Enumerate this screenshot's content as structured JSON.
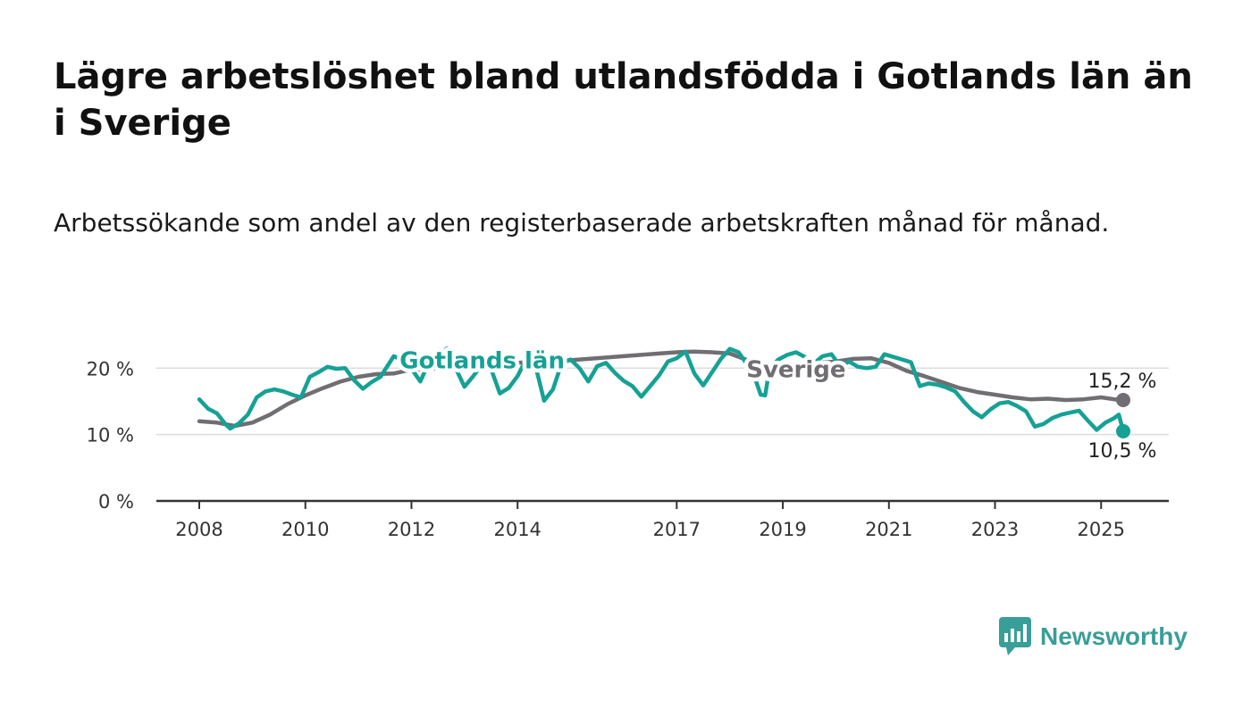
{
  "header": {
    "title": "Lägre arbetslöshet bland utlandsfödda i Gotlands län än i Sverige",
    "subtitle": "Arbetssökande som andel av den registerbaserade arbetskraften månad för månad."
  },
  "brand": {
    "name": "Newsworthy",
    "color": "#3a9e98",
    "icon": "newsworthy-chart-bubble-icon"
  },
  "colors": {
    "gotland": "#16a195",
    "sverige": "#706d73",
    "grid": "#dddddd",
    "axis": "#333333"
  },
  "chart_data": {
    "type": "line",
    "title": "",
    "xlabel": "",
    "ylabel": "",
    "xlim": [
      "2008-01",
      "2025-06"
    ],
    "ylim": [
      0,
      23
    ],
    "y_ticks": [
      {
        "value": 0,
        "label": "0 %"
      },
      {
        "value": 10,
        "label": "10 %"
      },
      {
        "value": 20,
        "label": "20 %"
      }
    ],
    "x_ticks": [
      {
        "date": "2008-01",
        "label": "2008"
      },
      {
        "date": "2010-01",
        "label": "2010"
      },
      {
        "date": "2012-01",
        "label": "2012"
      },
      {
        "date": "2014-01",
        "label": "2014"
      },
      {
        "date": "2017-01",
        "label": "2017"
      },
      {
        "date": "2019-01",
        "label": "2019"
      },
      {
        "date": "2021-01",
        "label": "2021"
      },
      {
        "date": "2023-01",
        "label": "2023"
      },
      {
        "date": "2025-01",
        "label": "2025"
      }
    ],
    "grid": "horizontal",
    "legend": "direct labels",
    "series": [
      {
        "name": "Sverige",
        "color": "#706d73",
        "label_at": "2019-04",
        "end_label": "15,2 %",
        "points": [
          [
            "2008-01",
            12.0
          ],
          [
            "2008-05",
            11.8
          ],
          [
            "2008-09",
            11.3
          ],
          [
            "2009-01",
            11.8
          ],
          [
            "2009-05",
            13.0
          ],
          [
            "2009-09",
            14.6
          ],
          [
            "2010-01",
            15.9
          ],
          [
            "2010-05",
            17.0
          ],
          [
            "2010-09",
            18.0
          ],
          [
            "2011-01",
            18.7
          ],
          [
            "2011-05",
            19.1
          ],
          [
            "2011-09",
            19.2
          ],
          [
            "2012-01",
            19.8
          ],
          [
            "2012-05",
            19.9
          ],
          [
            "2012-09",
            20.0
          ],
          [
            "2013-01",
            20.2
          ],
          [
            "2013-05",
            20.4
          ],
          [
            "2013-09",
            20.5
          ],
          [
            "2014-01",
            20.8
          ],
          [
            "2014-05",
            21.0
          ],
          [
            "2014-09",
            21.0
          ],
          [
            "2015-01",
            21.2
          ],
          [
            "2015-05",
            21.4
          ],
          [
            "2015-09",
            21.6
          ],
          [
            "2016-01",
            21.8
          ],
          [
            "2016-05",
            22.0
          ],
          [
            "2016-09",
            22.2
          ],
          [
            "2017-01",
            22.4
          ],
          [
            "2017-05",
            22.5
          ],
          [
            "2017-09",
            22.4
          ],
          [
            "2018-01",
            22.2
          ],
          [
            "2018-05",
            21.2
          ],
          [
            "2018-09",
            20.2
          ],
          [
            "2019-01",
            19.9
          ],
          [
            "2019-05",
            20.3
          ],
          [
            "2019-09",
            20.8
          ],
          [
            "2020-01",
            21.0
          ],
          [
            "2020-05",
            21.4
          ],
          [
            "2020-09",
            21.5
          ],
          [
            "2021-01",
            20.8
          ],
          [
            "2021-05",
            19.6
          ],
          [
            "2021-09",
            18.8
          ],
          [
            "2022-01",
            17.9
          ],
          [
            "2022-05",
            17.0
          ],
          [
            "2022-09",
            16.4
          ],
          [
            "2023-01",
            16.0
          ],
          [
            "2023-05",
            15.6
          ],
          [
            "2023-09",
            15.3
          ],
          [
            "2024-01",
            15.4
          ],
          [
            "2024-05",
            15.2
          ],
          [
            "2024-09",
            15.3
          ],
          [
            "2025-01",
            15.6
          ],
          [
            "2025-04",
            15.3
          ],
          [
            "2025-06",
            15.2
          ]
        ]
      },
      {
        "name": "Gotlands län",
        "color": "#16a195",
        "label_at": "2013-05",
        "end_label": "10,5 %",
        "points": [
          [
            "2008-01",
            15.3
          ],
          [
            "2008-03",
            13.9
          ],
          [
            "2008-05",
            13.2
          ],
          [
            "2008-07",
            11.5
          ],
          [
            "2008-08",
            10.9
          ],
          [
            "2008-10",
            11.7
          ],
          [
            "2008-12",
            13.0
          ],
          [
            "2009-02",
            15.6
          ],
          [
            "2009-04",
            16.5
          ],
          [
            "2009-06",
            16.8
          ],
          [
            "2009-08",
            16.5
          ],
          [
            "2009-10",
            16.0
          ],
          [
            "2009-12",
            15.6
          ],
          [
            "2010-02",
            18.7
          ],
          [
            "2010-04",
            19.4
          ],
          [
            "2010-06",
            20.2
          ],
          [
            "2010-08",
            19.9
          ],
          [
            "2010-10",
            20.0
          ],
          [
            "2010-12",
            18.2
          ],
          [
            "2011-02",
            16.9
          ],
          [
            "2011-04",
            17.9
          ],
          [
            "2011-06",
            18.7
          ],
          [
            "2011-09",
            21.8
          ],
          [
            "2011-11",
            21.2
          ],
          [
            "2012-01",
            19.9
          ],
          [
            "2012-03",
            18.0
          ],
          [
            "2012-05",
            21.0
          ],
          [
            "2012-07",
            21.5
          ],
          [
            "2012-09",
            23.0
          ],
          [
            "2012-11",
            20.0
          ],
          [
            "2013-01",
            17.2
          ],
          [
            "2013-03",
            18.8
          ],
          [
            "2013-05",
            20.6
          ],
          [
            "2013-07",
            19.9
          ],
          [
            "2013-09",
            16.2
          ],
          [
            "2013-11",
            17.0
          ],
          [
            "2014-01",
            18.8
          ],
          [
            "2014-03",
            21.4
          ],
          [
            "2014-05",
            20.5
          ],
          [
            "2014-07",
            15.1
          ],
          [
            "2014-09",
            16.8
          ],
          [
            "2014-11",
            20.8
          ],
          [
            "2015-01",
            21.3
          ],
          [
            "2015-03",
            20.0
          ],
          [
            "2015-05",
            18.0
          ],
          [
            "2015-07",
            20.3
          ],
          [
            "2015-09",
            20.8
          ],
          [
            "2015-11",
            19.3
          ],
          [
            "2016-01",
            18.1
          ],
          [
            "2016-03",
            17.3
          ],
          [
            "2016-05",
            15.7
          ],
          [
            "2016-07",
            17.3
          ],
          [
            "2016-09",
            18.9
          ],
          [
            "2016-11",
            21.0
          ],
          [
            "2017-01",
            21.5
          ],
          [
            "2017-03",
            22.5
          ],
          [
            "2017-05",
            19.2
          ],
          [
            "2017-07",
            17.4
          ],
          [
            "2017-09",
            19.4
          ],
          [
            "2017-11",
            21.4
          ],
          [
            "2018-01",
            22.9
          ],
          [
            "2018-03",
            22.4
          ],
          [
            "2018-05",
            20.5
          ],
          [
            "2018-07",
            17.9
          ],
          [
            "2018-08",
            16.0
          ],
          [
            "2018-09",
            15.9
          ],
          [
            "2018-10",
            20.0
          ],
          [
            "2018-12",
            21.3
          ],
          [
            "2019-02",
            22.0
          ],
          [
            "2019-04",
            22.4
          ],
          [
            "2019-06",
            21.7
          ],
          [
            "2019-08",
            20.7
          ],
          [
            "2019-10",
            21.8
          ],
          [
            "2019-12",
            22.1
          ],
          [
            "2020-02",
            20.3
          ],
          [
            "2020-04",
            21.0
          ],
          [
            "2020-06",
            20.2
          ],
          [
            "2020-08",
            20.0
          ],
          [
            "2020-10",
            20.2
          ],
          [
            "2020-12",
            22.1
          ],
          [
            "2021-02",
            21.7
          ],
          [
            "2021-04",
            21.3
          ],
          [
            "2021-06",
            20.9
          ],
          [
            "2021-08",
            17.3
          ],
          [
            "2021-10",
            17.7
          ],
          [
            "2021-12",
            17.5
          ],
          [
            "2022-02",
            17.1
          ],
          [
            "2022-04",
            16.5
          ],
          [
            "2022-06",
            14.9
          ],
          [
            "2022-08",
            13.5
          ],
          [
            "2022-10",
            12.6
          ],
          [
            "2022-12",
            13.8
          ],
          [
            "2023-02",
            14.7
          ],
          [
            "2023-04",
            14.9
          ],
          [
            "2023-06",
            14.3
          ],
          [
            "2023-08",
            13.5
          ],
          [
            "2023-10",
            11.2
          ],
          [
            "2023-12",
            11.6
          ],
          [
            "2024-02",
            12.5
          ],
          [
            "2024-04",
            13.0
          ],
          [
            "2024-06",
            13.3
          ],
          [
            "2024-08",
            13.6
          ],
          [
            "2024-10",
            12.1
          ],
          [
            "2024-12",
            10.7
          ],
          [
            "2025-02",
            11.8
          ],
          [
            "2025-04",
            12.5
          ],
          [
            "2025-05",
            13.0
          ],
          [
            "2025-06",
            10.5
          ]
        ]
      }
    ]
  }
}
